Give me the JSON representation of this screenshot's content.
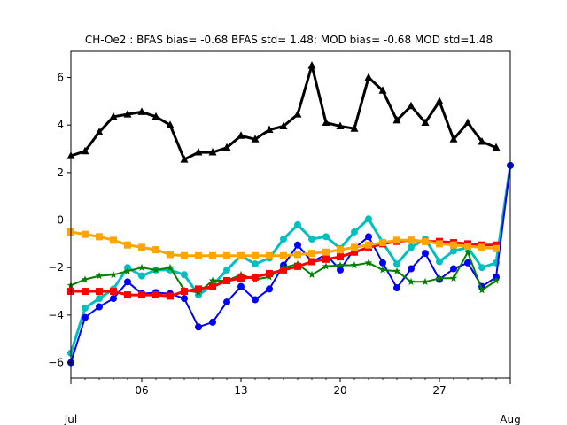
{
  "chart_data": {
    "type": "line",
    "title": "CH-Oe2   : BFAS bias= -0.68 BFAS std= 1.48; MOD bias= -0.68 MOD std=1.48",
    "xlabel": "",
    "ylabel": "",
    "x_range": [
      1,
      32
    ],
    "ylim": [
      -6.65,
      7.1
    ],
    "y_ticks": [
      -6,
      -4,
      -2,
      0,
      2,
      4,
      6
    ],
    "x_ticks": [
      {
        "x": 6,
        "label": "06"
      },
      {
        "x": 13,
        "label": "13"
      },
      {
        "x": 20,
        "label": "20"
      },
      {
        "x": 27,
        "label": "27"
      }
    ],
    "x_minor_ticks": [
      1,
      2,
      3,
      4,
      5,
      7,
      8,
      9,
      10,
      11,
      12,
      14,
      15,
      16,
      17,
      18,
      19,
      21,
      22,
      23,
      24,
      25,
      26,
      28,
      29,
      30,
      31,
      32
    ],
    "month_labels": [
      {
        "x": 1,
        "label": "Jul"
      },
      {
        "x": 32,
        "label": "Aug"
      }
    ],
    "grid": false,
    "legend": false,
    "series": [
      {
        "color": "#000000",
        "marker": "triangle",
        "width": 3,
        "x": [
          1,
          2,
          3,
          4,
          5,
          6,
          7,
          8,
          9,
          10,
          11,
          12,
          13,
          14,
          15,
          16,
          17,
          18,
          19,
          20,
          21,
          22,
          23,
          24,
          25,
          26,
          27,
          28,
          29,
          30,
          31
        ],
        "y": [
          2.7,
          2.9,
          3.7,
          4.35,
          4.45,
          4.55,
          4.35,
          4.0,
          2.55,
          2.85,
          2.85,
          3.05,
          3.55,
          3.4,
          3.8,
          3.95,
          4.45,
          6.5,
          4.1,
          3.95,
          3.85,
          6.0,
          5.45,
          4.2,
          4.8,
          4.1,
          5.0,
          3.4,
          4.1,
          3.3,
          3.05
        ]
      },
      {
        "color": "#00bfbf",
        "marker": "circle",
        "width": 3,
        "x": [
          1,
          2,
          3,
          4,
          5,
          6,
          7,
          8,
          9,
          10,
          11,
          12,
          13,
          14,
          15,
          16,
          17,
          18,
          19,
          20,
          21,
          22,
          23,
          24,
          25,
          26,
          27,
          28,
          29,
          30,
          31,
          32
        ],
        "y": [
          -5.6,
          -3.7,
          -3.3,
          -2.9,
          -2.0,
          -2.35,
          -2.1,
          -2.1,
          -2.3,
          -3.15,
          -2.75,
          -2.1,
          -1.5,
          -1.85,
          -1.6,
          -0.8,
          -0.2,
          -0.8,
          -0.7,
          -1.2,
          -0.5,
          0.05,
          -0.95,
          -1.85,
          -1.15,
          -0.8,
          -1.75,
          -1.3,
          -1.15,
          -2.0,
          -1.8,
          2.3
        ]
      },
      {
        "color": "#0000ff",
        "marker": "circle",
        "width": 2,
        "x": [
          1,
          2,
          3,
          4,
          5,
          6,
          7,
          8,
          9,
          10,
          11,
          12,
          13,
          14,
          15,
          16,
          17,
          18,
          19,
          20,
          21,
          22,
          23,
          24,
          25,
          26,
          27,
          28,
          29,
          30,
          31,
          32
        ],
        "y": [
          -6.0,
          -4.1,
          -3.65,
          -3.3,
          -2.6,
          -3.1,
          -3.05,
          -3.1,
          -3.3,
          -4.5,
          -4.3,
          -3.45,
          -2.8,
          -3.35,
          -2.9,
          -1.9,
          -1.05,
          -1.75,
          -1.45,
          -2.1,
          -1.2,
          -0.7,
          -1.8,
          -2.85,
          -2.05,
          -1.4,
          -2.5,
          -2.05,
          -1.8,
          -2.8,
          -2.4,
          2.3
        ]
      },
      {
        "color": "#008000",
        "marker": "star",
        "width": 2,
        "x": [
          1,
          2,
          3,
          4,
          5,
          6,
          7,
          8,
          9,
          10,
          11,
          12,
          13,
          14,
          15,
          16,
          17,
          18,
          19,
          20,
          21,
          22,
          23,
          24,
          25,
          26,
          27,
          28,
          29,
          30,
          31
        ],
        "y": [
          -2.75,
          -2.5,
          -2.35,
          -2.3,
          -2.15,
          -2.0,
          -2.1,
          -2.0,
          -2.95,
          -3.05,
          -2.55,
          -2.55,
          -2.3,
          -2.5,
          -2.4,
          -2.0,
          -1.85,
          -2.3,
          -1.95,
          -1.9,
          -1.9,
          -1.8,
          -2.1,
          -2.15,
          -2.6,
          -2.6,
          -2.45,
          -2.45,
          -1.35,
          -2.95,
          -2.55
        ]
      },
      {
        "color": "#ff0000",
        "marker": "square",
        "width": 3,
        "x": [
          1,
          2,
          3,
          4,
          5,
          6,
          7,
          8,
          9,
          10,
          11,
          12,
          13,
          14,
          15,
          16,
          17,
          18,
          19,
          20,
          21,
          22,
          23,
          24,
          25,
          26,
          27,
          28,
          29,
          30,
          31
        ],
        "y": [
          -3.0,
          -3.0,
          -3.0,
          -3.0,
          -3.15,
          -3.15,
          -3.15,
          -3.2,
          -3.0,
          -2.9,
          -2.8,
          -2.55,
          -2.45,
          -2.4,
          -2.25,
          -2.1,
          -1.95,
          -1.75,
          -1.65,
          -1.55,
          -1.35,
          -1.15,
          -1.0,
          -0.9,
          -0.85,
          -0.9,
          -0.9,
          -0.95,
          -1.0,
          -1.05,
          -1.05
        ]
      },
      {
        "color": "#ffa500",
        "marker": "square",
        "width": 3,
        "x": [
          1,
          2,
          3,
          4,
          5,
          6,
          7,
          8,
          9,
          10,
          11,
          12,
          13,
          14,
          15,
          16,
          17,
          18,
          19,
          20,
          21,
          22,
          23,
          24,
          25,
          26,
          27,
          28,
          29,
          30,
          31
        ],
        "y": [
          -0.5,
          -0.6,
          -0.7,
          -0.85,
          -1.05,
          -1.15,
          -1.25,
          -1.45,
          -1.5,
          -1.5,
          -1.5,
          -1.5,
          -1.5,
          -1.5,
          -1.5,
          -1.5,
          -1.45,
          -1.4,
          -1.35,
          -1.25,
          -1.15,
          -1.05,
          -0.95,
          -0.85,
          -0.85,
          -0.9,
          -1.0,
          -1.05,
          -1.1,
          -1.15,
          -1.2
        ]
      }
    ]
  }
}
